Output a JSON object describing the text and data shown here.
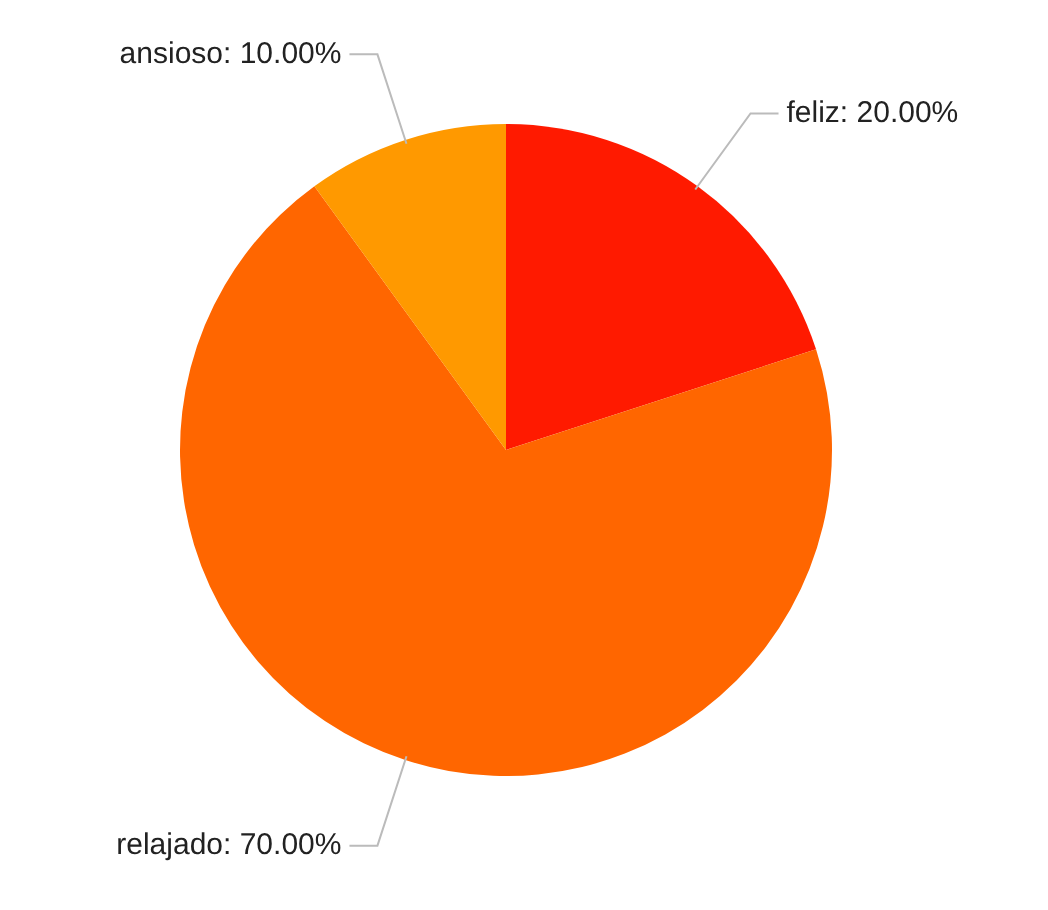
{
  "chart_data": {
    "type": "pie",
    "categories": [
      "feliz",
      "relajado",
      "ansioso"
    ],
    "values": [
      20,
      70,
      10
    ],
    "colors": [
      "#ff1a00",
      "#ff6600",
      "#ff9900"
    ],
    "value_labels": [
      "20.00%",
      "70.00%",
      "10.00%"
    ],
    "legend": false
  }
}
